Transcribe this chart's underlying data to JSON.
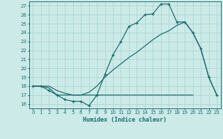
{
  "xlabel": "Humidex (Indice chaleur)",
  "bg_color": "#cceae8",
  "line_color": "#1a6b6b",
  "grid_color": "#b0d8d5",
  "xlim": [
    -0.5,
    23.5
  ],
  "ylim": [
    15.5,
    27.5
  ],
  "xticks": [
    0,
    1,
    2,
    3,
    4,
    5,
    6,
    7,
    8,
    9,
    10,
    11,
    12,
    13,
    14,
    15,
    16,
    17,
    18,
    19,
    20,
    21,
    22,
    23
  ],
  "yticks": [
    16,
    17,
    18,
    19,
    20,
    21,
    22,
    23,
    24,
    25,
    26,
    27
  ],
  "line1_x": [
    0,
    1,
    2,
    3,
    4,
    5,
    6,
    7,
    8,
    9,
    10,
    11,
    12,
    13,
    14,
    15,
    16,
    17,
    18,
    19,
    20,
    21,
    22,
    23
  ],
  "line1_y": [
    18,
    18,
    17.5,
    17,
    16.5,
    16.3,
    16.3,
    15.8,
    17,
    19.3,
    21.5,
    23,
    24.7,
    25.1,
    26.0,
    26.1,
    27.2,
    27.2,
    25.2,
    25.2,
    24.0,
    22.2,
    19.0,
    17.0
  ],
  "line2_x": [
    0,
    2,
    3,
    4,
    5,
    6,
    7,
    8,
    9,
    10,
    11,
    12,
    13,
    14,
    15,
    16,
    17,
    18,
    19,
    20,
    21,
    22,
    23
  ],
  "line2_y": [
    18,
    18,
    17.5,
    17.2,
    17.0,
    17.0,
    17.3,
    18.0,
    19.0,
    19.8,
    20.5,
    21.2,
    21.8,
    22.5,
    23.2,
    23.8,
    24.2,
    24.8,
    25.2,
    24.0,
    22.2,
    19.0,
    17.0
  ],
  "line3_x": [
    0,
    1,
    2,
    3,
    4,
    5,
    6,
    7,
    8,
    9,
    10,
    11,
    12,
    13,
    14,
    15,
    16,
    17,
    18,
    19,
    20
  ],
  "line3_y": [
    18,
    18,
    17.8,
    17,
    17,
    17,
    17,
    17,
    17,
    17,
    17,
    17,
    17,
    17,
    17,
    17,
    17,
    17,
    17,
    17,
    17
  ]
}
